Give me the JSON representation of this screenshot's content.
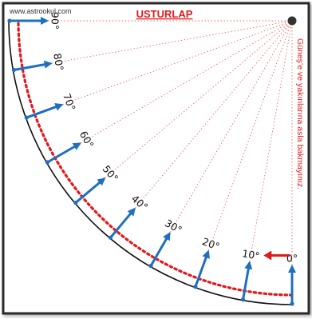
{
  "site": "www.astrookul.com",
  "title": "USTURLAP",
  "warning": "Güneş’e ve yakınlarına asla bakmayınız.",
  "angles": [
    0,
    10,
    20,
    30,
    40,
    50,
    60,
    70,
    80,
    90
  ],
  "angle_labels": [
    "0°",
    "10°",
    "20°",
    "30°",
    "40°",
    "50°",
    "60°",
    "70°",
    "80°",
    "90°"
  ],
  "colors": {
    "frame": "#2b2b2b",
    "arc": "#111111",
    "dotted_arc": "#e0191b",
    "rays": "#e86a6a",
    "arrows": "#1f6fc1",
    "pointer": "#e0191b",
    "title": "#e0191b",
    "pivot": "#333333"
  }
}
